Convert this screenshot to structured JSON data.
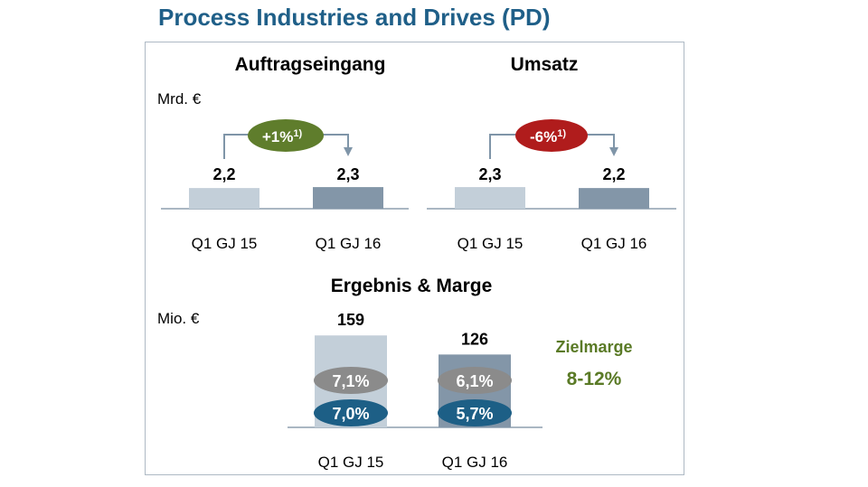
{
  "page": {
    "title": "Process Industries and Drives (PD)"
  },
  "colors": {
    "bar_prev": "#c3cfd9",
    "bar_curr": "#8396a8",
    "baseline": "#aab7c3",
    "arrow": "#7f95a8",
    "badge_green": "#5f7d2c",
    "badge_red": "#b01c1c",
    "oval_grey": "#8b8b8b",
    "oval_blue": "#1d5f86"
  },
  "chart_data": [
    {
      "type": "bar",
      "title": "Auftragseingang",
      "unit": "Mrd. €",
      "categories": [
        "Q1 GJ 15",
        "Q1 GJ 16"
      ],
      "values": [
        2.2,
        2.3
      ],
      "value_labels": [
        "2,2",
        "2,3"
      ],
      "change_label": "+1%",
      "change_footnote": "1)"
    },
    {
      "type": "bar",
      "title": "Umsatz",
      "unit": "Mrd. €",
      "categories": [
        "Q1 GJ 15",
        "Q1 GJ 16"
      ],
      "values": [
        2.3,
        2.2
      ],
      "value_labels": [
        "2,3",
        "2,2"
      ],
      "change_label": "-6%",
      "change_footnote": "1)"
    },
    {
      "type": "bar",
      "title": "Ergebnis & Marge",
      "unit": "Mio. €",
      "categories": [
        "Q1 GJ 15",
        "Q1 GJ 16"
      ],
      "values": [
        159,
        126
      ],
      "value_labels": [
        "159",
        "126"
      ],
      "margin_upper": [
        "7,1%",
        "6,1%"
      ],
      "margin_lower": [
        "7,0%",
        "5,7%"
      ],
      "target_label": "Zielmarge",
      "target_value": "8-12%"
    }
  ]
}
